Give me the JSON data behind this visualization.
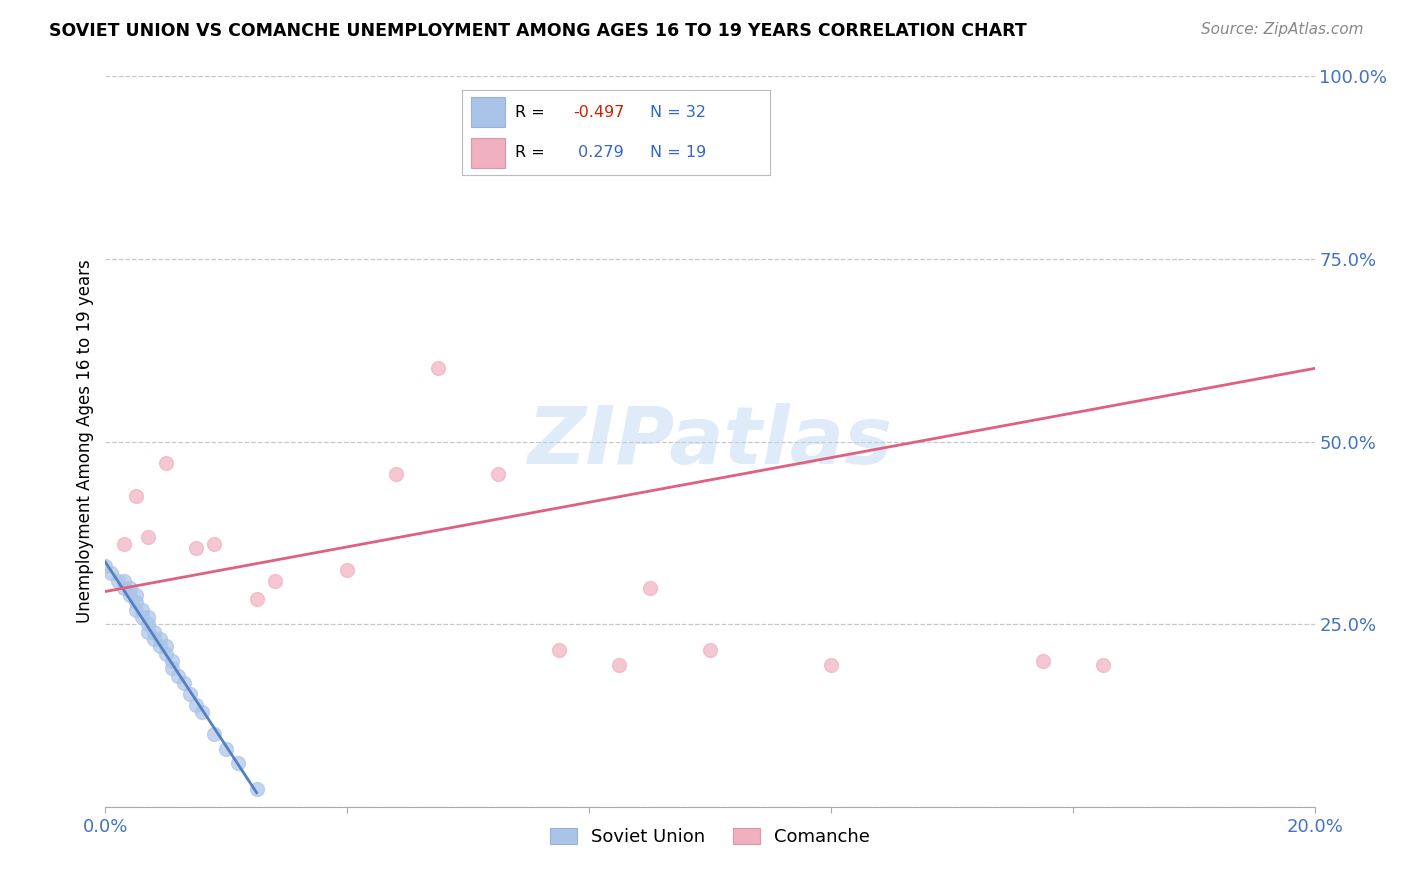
{
  "title": "SOVIET UNION VS COMANCHE UNEMPLOYMENT AMONG AGES 16 TO 19 YEARS CORRELATION CHART",
  "source": "Source: ZipAtlas.com",
  "ylabel": "Unemployment Among Ages 16 to 19 years",
  "xlim": [
    0.0,
    0.2
  ],
  "ylim": [
    0.0,
    1.0
  ],
  "xticks": [
    0.0,
    0.04,
    0.08,
    0.12,
    0.16,
    0.2
  ],
  "xticklabels": [
    "0.0%",
    "",
    "",
    "",
    "",
    "20.0%"
  ],
  "yticks": [
    0.0,
    0.25,
    0.5,
    0.75,
    1.0
  ],
  "yticklabels": [
    "",
    "25.0%",
    "50.0%",
    "75.0%",
    "100.0%"
  ],
  "background_color": "#ffffff",
  "grid_color": "#c8c8c8",
  "legend_R1": "-0.497",
  "legend_N1": "32",
  "legend_R2": "0.279",
  "legend_N2": "19",
  "series1_name": "Soviet Union",
  "series1_color": "#aac4e8",
  "series1_line_color": "#5580c0",
  "series2_name": "Comanche",
  "series2_color": "#f0b0c0",
  "series2_line_color": "#e06080",
  "soviet_x": [
    0.0,
    0.001,
    0.002,
    0.003,
    0.003,
    0.004,
    0.004,
    0.005,
    0.005,
    0.005,
    0.006,
    0.006,
    0.007,
    0.007,
    0.007,
    0.008,
    0.008,
    0.009,
    0.009,
    0.01,
    0.01,
    0.011,
    0.011,
    0.012,
    0.013,
    0.014,
    0.015,
    0.016,
    0.018,
    0.02,
    0.022,
    0.025
  ],
  "soviet_y": [
    0.33,
    0.32,
    0.31,
    0.3,
    0.31,
    0.29,
    0.3,
    0.28,
    0.27,
    0.29,
    0.26,
    0.27,
    0.25,
    0.24,
    0.26,
    0.23,
    0.24,
    0.22,
    0.23,
    0.21,
    0.22,
    0.2,
    0.19,
    0.18,
    0.17,
    0.155,
    0.14,
    0.13,
    0.1,
    0.08,
    0.06,
    0.025
  ],
  "comanche_x": [
    0.003,
    0.005,
    0.007,
    0.01,
    0.015,
    0.018,
    0.025,
    0.028,
    0.04,
    0.048,
    0.055,
    0.065,
    0.075,
    0.085,
    0.09,
    0.1,
    0.12,
    0.155,
    0.165
  ],
  "comanche_y": [
    0.36,
    0.425,
    0.37,
    0.47,
    0.355,
    0.36,
    0.285,
    0.31,
    0.325,
    0.455,
    0.6,
    0.455,
    0.215,
    0.195,
    0.3,
    0.215,
    0.195,
    0.2,
    0.195
  ],
  "soviet_trendline_x": [
    0.0,
    0.025
  ],
  "soviet_trendline_y": [
    0.335,
    0.02
  ],
  "comanche_trendline_x": [
    0.0,
    0.2
  ],
  "comanche_trendline_y": [
    0.295,
    0.6
  ]
}
